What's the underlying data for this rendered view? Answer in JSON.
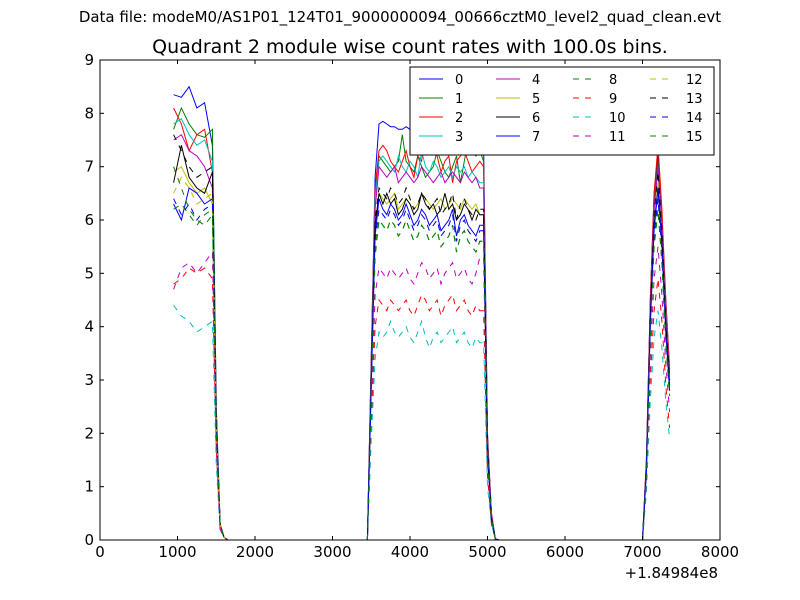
{
  "figure": {
    "suptitle": "Data file: modeM0/AS1P01_124T01_9000000094_00666cztM0_level2_quad_clean.evt"
  },
  "chart_data": {
    "type": "line",
    "title": "Quadrant 2 module wise count rates with 100.0s bins.",
    "xlabel": "",
    "ylabel": "",
    "x_offset_label": "+1.84984e8",
    "xlim": [
      0,
      8000
    ],
    "ylim": [
      0,
      9
    ],
    "xticks": [
      0,
      1000,
      2000,
      3000,
      4000,
      5000,
      6000,
      7000,
      8000
    ],
    "yticks": [
      0,
      1,
      2,
      3,
      4,
      5,
      6,
      7,
      8,
      9
    ],
    "grid": false,
    "legend_position": "top-right",
    "x_segments": [
      [
        950,
        1050,
        1150,
        1250,
        1350,
        1450,
        1500,
        1550,
        1600,
        1650
      ],
      [
        3450,
        3500,
        3550,
        3600,
        3650,
        3700,
        3750,
        3800,
        3850,
        3900,
        3950,
        4000,
        4050,
        4100,
        4150,
        4200,
        4250,
        4300,
        4350,
        4400,
        4450,
        4500,
        4550,
        4600,
        4650,
        4700,
        4750,
        4800,
        4850,
        4900,
        4950,
        5000,
        5050,
        5100,
        5150
      ],
      [
        7000,
        7050,
        7100,
        7150,
        7200,
        7250,
        7300,
        7350
      ]
    ],
    "series": [
      {
        "name": "0",
        "color": "#0000ff",
        "style": "solid",
        "segments": [
          [
            8.35,
            8.3,
            8.5,
            8.1,
            8.2,
            7.4,
            2.5,
            0.3,
            0.05,
            0
          ],
          [
            0,
            3.5,
            6.8,
            7.8,
            7.85,
            7.8,
            7.75,
            7.75,
            7.7,
            7.7,
            7.75,
            7.7,
            7.65,
            7.6,
            7.7,
            7.6,
            7.65,
            7.7,
            7.6,
            7.55,
            7.6,
            7.6,
            7.55,
            7.6,
            7.6,
            7.5,
            7.55,
            7.5,
            7.45,
            7.4,
            7.4,
            2.0,
            0.5,
            0.02,
            0
          ],
          [
            0,
            1.5,
            4.5,
            6.5,
            7.2,
            6.0,
            4.5,
            3.2
          ]
        ]
      },
      {
        "name": "1",
        "color": "#008000",
        "style": "solid",
        "segments": [
          [
            7.7,
            8.1,
            7.8,
            7.6,
            7.55,
            7.7,
            2.4,
            0.3,
            0.05,
            0
          ],
          [
            0,
            3.3,
            6.5,
            7.2,
            7.1,
            7.0,
            6.9,
            7.0,
            7.1,
            7.6,
            7.1,
            7.0,
            6.9,
            7.2,
            7.0,
            6.8,
            6.9,
            7.0,
            7.3,
            7.1,
            6.9,
            6.8,
            7.0,
            7.2,
            6.7,
            7.1,
            7.5,
            7.3,
            7.2,
            7.3,
            7.1,
            1.9,
            0.5,
            0.02,
            0
          ],
          [
            0,
            1.4,
            4.4,
            6.3,
            7.1,
            6.0,
            4.4,
            3.1
          ]
        ]
      },
      {
        "name": "2",
        "color": "#ff0000",
        "style": "solid",
        "segments": [
          [
            8.1,
            7.8,
            7.3,
            7.6,
            7.7,
            6.9,
            2.3,
            0.3,
            0.05,
            0
          ],
          [
            0,
            3.4,
            6.6,
            7.3,
            7.4,
            7.3,
            7.1,
            7.0,
            6.9,
            7.1,
            7.3,
            7.0,
            6.8,
            7.2,
            7.1,
            7.7,
            7.6,
            7.3,
            7.2,
            6.9,
            7.1,
            7.2,
            6.7,
            7.1,
            7.2,
            7.3,
            7.1,
            6.9,
            7.0,
            7.1,
            7.0,
            1.9,
            0.5,
            0.02,
            0
          ],
          [
            0,
            1.5,
            4.5,
            6.5,
            7.4,
            6.2,
            4.5,
            3.2
          ]
        ]
      },
      {
        "name": "3",
        "color": "#00bfbf",
        "style": "solid",
        "segments": [
          [
            7.8,
            7.9,
            7.6,
            7.4,
            7.5,
            7.1,
            2.3,
            0.3,
            0.05,
            0
          ],
          [
            0,
            3.3,
            6.4,
            7.1,
            7.2,
            7.1,
            7.0,
            6.9,
            7.2,
            7.0,
            6.9,
            7.1,
            7.0,
            6.8,
            7.3,
            7.0,
            6.9,
            7.1,
            7.0,
            6.8,
            6.9,
            7.0,
            6.8,
            7.0,
            6.9,
            7.0,
            6.8,
            6.9,
            6.8,
            6.7,
            6.7,
            1.8,
            0.5,
            0.02,
            0
          ],
          [
            0,
            1.4,
            4.3,
            6.2,
            7.0,
            5.9,
            4.3,
            3.0
          ]
        ]
      },
      {
        "name": "4",
        "color": "#bf00bf",
        "style": "solid",
        "segments": [
          [
            7.5,
            7.6,
            7.3,
            7.2,
            7.0,
            6.6,
            2.2,
            0.3,
            0.05,
            0
          ],
          [
            0,
            3.2,
            6.2,
            7.0,
            6.9,
            6.8,
            6.9,
            7.0,
            6.7,
            6.8,
            6.9,
            6.8,
            6.7,
            6.8,
            7.0,
            6.9,
            6.8,
            6.7,
            6.8,
            6.9,
            6.7,
            6.8,
            6.9,
            6.8,
            6.7,
            6.9,
            6.8,
            6.7,
            6.8,
            6.6,
            6.6,
            1.8,
            0.5,
            0.02,
            0
          ],
          [
            0,
            1.4,
            4.3,
            6.2,
            7.0,
            5.9,
            4.2,
            3.0
          ]
        ]
      },
      {
        "name": "5",
        "color": "#bfbf00",
        "style": "solid",
        "segments": [
          [
            6.9,
            7.0,
            6.7,
            6.5,
            6.6,
            6.3,
            2.1,
            0.3,
            0.05,
            0
          ],
          [
            0,
            3.0,
            5.8,
            6.5,
            6.4,
            6.3,
            6.4,
            6.5,
            6.2,
            6.3,
            6.4,
            6.3,
            6.2,
            6.3,
            6.5,
            6.4,
            6.3,
            6.2,
            6.3,
            6.4,
            6.2,
            6.3,
            6.4,
            6.3,
            6.2,
            6.4,
            6.3,
            6.2,
            6.3,
            6.1,
            6.1,
            1.7,
            0.4,
            0.02,
            0
          ],
          [
            0,
            1.3,
            4.1,
            5.9,
            6.7,
            5.6,
            4.0,
            2.9
          ]
        ]
      },
      {
        "name": "6",
        "color": "#000000",
        "style": "solid",
        "segments": [
          [
            6.7,
            7.4,
            6.8,
            6.6,
            6.5,
            6.9,
            2.2,
            0.3,
            0.05,
            0
          ],
          [
            0,
            3.0,
            5.9,
            6.5,
            6.3,
            6.5,
            6.3,
            6.4,
            6.1,
            6.2,
            6.4,
            6.3,
            6.1,
            6.2,
            6.5,
            6.3,
            6.2,
            6.3,
            6.1,
            6.2,
            6.5,
            6.2,
            6.3,
            6.0,
            6.1,
            6.3,
            6.2,
            6.0,
            6.2,
            6.1,
            6.1,
            1.7,
            0.4,
            0.02,
            0
          ],
          [
            0,
            1.3,
            4.1,
            5.9,
            6.6,
            5.6,
            4.0,
            2.9
          ]
        ]
      },
      {
        "name": "7",
        "color": "#0000ff",
        "style": "solid",
        "segments": [
          [
            6.3,
            6.0,
            6.6,
            6.5,
            6.3,
            6.4,
            2.1,
            0.3,
            0.05,
            0
          ],
          [
            0,
            2.9,
            5.7,
            6.4,
            6.2,
            6.1,
            6.3,
            6.2,
            6.0,
            6.1,
            6.3,
            6.1,
            5.9,
            6.0,
            6.2,
            6.1,
            5.9,
            6.0,
            6.1,
            5.8,
            5.9,
            6.0,
            6.2,
            5.7,
            6.0,
            6.1,
            5.9,
            5.8,
            5.7,
            5.9,
            5.9,
            1.6,
            0.4,
            0.02,
            0
          ],
          [
            0,
            1.3,
            4.0,
            5.8,
            6.6,
            5.5,
            3.9,
            2.8
          ]
        ]
      },
      {
        "name": "8",
        "color": "#008000",
        "style": "dashed",
        "segments": [
          [
            6.2,
            6.3,
            6.1,
            5.9,
            6.1,
            6.2,
            2.0,
            0.3,
            0.05,
            0
          ],
          [
            0,
            2.8,
            5.3,
            6.0,
            5.9,
            5.8,
            6.0,
            5.9,
            5.7,
            5.8,
            6.0,
            5.8,
            5.6,
            5.7,
            5.9,
            5.8,
            5.6,
            5.7,
            5.8,
            5.5,
            5.6,
            5.7,
            5.9,
            5.4,
            5.7,
            5.8,
            5.6,
            5.5,
            5.4,
            5.6,
            5.6,
            1.5,
            0.4,
            0.02,
            0
          ],
          [
            0,
            1.2,
            3.8,
            5.5,
            6.2,
            5.2,
            3.7,
            2.7
          ]
        ]
      },
      {
        "name": "9",
        "color": "#ff0000",
        "style": "dashed",
        "segments": [
          [
            4.8,
            4.9,
            5.1,
            5.0,
            5.1,
            4.9,
            1.7,
            0.2,
            0.05,
            0
          ],
          [
            0,
            2.2,
            4.0,
            4.5,
            4.4,
            4.3,
            4.5,
            4.4,
            4.3,
            4.4,
            4.5,
            4.3,
            4.2,
            4.4,
            4.6,
            4.5,
            4.3,
            4.4,
            4.5,
            4.2,
            4.4,
            4.5,
            4.6,
            4.3,
            4.4,
            4.5,
            4.3,
            4.2,
            4.4,
            4.3,
            4.3,
            1.2,
            0.3,
            0.02,
            0
          ],
          [
            0,
            1.0,
            3.0,
            4.3,
            4.9,
            4.1,
            2.9,
            2.1
          ]
        ]
      },
      {
        "name": "10",
        "color": "#00bfbf",
        "style": "dashed",
        "segments": [
          [
            4.4,
            4.2,
            4.1,
            3.9,
            4.0,
            4.1,
            1.4,
            0.2,
            0.05,
            0
          ],
          [
            0,
            1.9,
            3.4,
            3.9,
            3.8,
            3.9,
            4.1,
            3.9,
            3.8,
            3.9,
            4.0,
            3.8,
            3.7,
            3.9,
            4.1,
            3.8,
            3.6,
            3.8,
            3.9,
            3.7,
            3.8,
            3.9,
            4.0,
            3.7,
            3.8,
            3.9,
            3.7,
            3.6,
            3.8,
            3.7,
            3.7,
            1.0,
            0.3,
            0.02,
            0
          ],
          [
            0,
            0.9,
            2.6,
            3.8,
            4.3,
            3.6,
            2.6,
            1.9
          ]
        ]
      },
      {
        "name": "11",
        "color": "#bf00bf",
        "style": "dashed",
        "segments": [
          [
            4.7,
            5.1,
            5.2,
            5.0,
            5.2,
            5.4,
            1.8,
            0.2,
            0.05,
            0
          ],
          [
            0,
            2.5,
            4.6,
            5.1,
            5.0,
            4.9,
            5.1,
            5.0,
            4.9,
            5.0,
            5.1,
            4.9,
            4.8,
            5.0,
            5.2,
            5.1,
            4.9,
            5.0,
            5.1,
            4.8,
            5.0,
            5.1,
            5.2,
            4.9,
            5.0,
            5.1,
            4.9,
            4.8,
            5.0,
            5.3,
            5.3,
            1.4,
            0.4,
            0.02,
            0
          ],
          [
            0,
            1.1,
            3.4,
            4.9,
            5.5,
            4.6,
            3.3,
            2.4
          ]
        ]
      },
      {
        "name": "12",
        "color": "#bfbf00",
        "style": "dashed",
        "segments": [
          [
            6.5,
            6.8,
            6.6,
            6.3,
            6.4,
            6.5,
            2.1,
            0.3,
            0.05,
            0
          ],
          [
            0,
            2.9,
            5.5,
            6.2,
            6.1,
            6.0,
            6.2,
            6.1,
            5.9,
            6.0,
            6.2,
            6.0,
            5.8,
            5.9,
            6.1,
            6.0,
            5.8,
            5.9,
            6.0,
            5.7,
            5.8,
            5.9,
            6.1,
            5.6,
            5.9,
            6.0,
            5.8,
            5.7,
            5.6,
            5.8,
            5.8,
            1.6,
            0.4,
            0.02,
            0
          ],
          [
            0,
            1.3,
            3.9,
            5.7,
            6.4,
            5.4,
            3.8,
            2.8
          ]
        ]
      },
      {
        "name": "13",
        "color": "#000000",
        "style": "dashed",
        "segments": [
          [
            7.6,
            7.3,
            7.0,
            6.8,
            6.9,
            7.0,
            2.2,
            0.3,
            0.05,
            0
          ],
          [
            0,
            3.1,
            6.0,
            6.6,
            6.5,
            6.4,
            6.6,
            6.5,
            6.3,
            6.4,
            6.6,
            6.4,
            6.2,
            6.3,
            6.5,
            6.4,
            6.2,
            6.3,
            6.4,
            6.1,
            6.2,
            6.3,
            6.5,
            6.0,
            6.3,
            6.4,
            6.2,
            6.1,
            6.0,
            6.2,
            6.2,
            1.7,
            0.4,
            0.02,
            0
          ],
          [
            0,
            1.4,
            4.2,
            6.1,
            6.9,
            5.8,
            4.1,
            3.0
          ]
        ]
      },
      {
        "name": "14",
        "color": "#0000ff",
        "style": "dashed",
        "segments": [
          [
            6.4,
            6.1,
            6.3,
            6.0,
            6.2,
            6.3,
            2.1,
            0.3,
            0.05,
            0
          ],
          [
            0,
            2.9,
            5.6,
            6.2,
            6.1,
            6.0,
            6.2,
            6.1,
            5.9,
            6.0,
            6.2,
            6.0,
            5.8,
            5.9,
            6.1,
            6.0,
            5.8,
            5.9,
            6.0,
            5.7,
            5.8,
            5.9,
            6.1,
            5.6,
            5.9,
            6.0,
            5.8,
            5.7,
            5.6,
            5.8,
            5.8,
            1.6,
            0.4,
            0.02,
            0
          ],
          [
            0,
            1.3,
            3.9,
            5.7,
            6.4,
            5.4,
            3.8,
            2.8
          ]
        ]
      },
      {
        "name": "15",
        "color": "#008000",
        "style": "dashed",
        "segments": [
          [
            7.0,
            6.6,
            6.2,
            6.0,
            5.9,
            6.1,
            2.0,
            0.3,
            0.05,
            0
          ],
          [
            0,
            2.8,
            5.4,
            6.0,
            5.9,
            5.8,
            6.0,
            5.9,
            5.7,
            5.8,
            6.0,
            5.8,
            5.6,
            5.7,
            5.9,
            5.8,
            5.6,
            5.7,
            5.8,
            5.5,
            5.6,
            5.7,
            5.9,
            5.4,
            5.7,
            5.8,
            5.6,
            5.5,
            5.4,
            5.6,
            5.6,
            1.5,
            0.4,
            0.02,
            0
          ],
          [
            0,
            1.2,
            3.8,
            5.5,
            6.2,
            5.2,
            3.7,
            2.7
          ]
        ]
      }
    ]
  }
}
